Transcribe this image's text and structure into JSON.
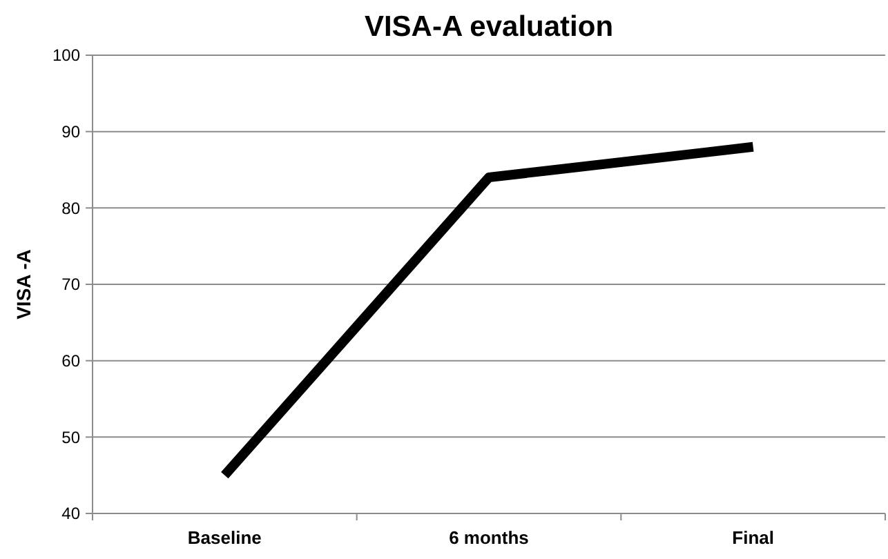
{
  "chart_data": {
    "type": "line",
    "title": "VISA-A evaluation",
    "ylabel": "VISA -A",
    "categories": [
      "Baseline",
      "6 months",
      "Final"
    ],
    "series": [
      {
        "color": "#000000",
        "values": [
          45,
          84,
          88
        ]
      }
    ],
    "ylim": [
      40,
      100
    ],
    "yticks": [
      40,
      50,
      60,
      70,
      80,
      90,
      100
    ],
    "grid": "y",
    "marker": "none",
    "line_style": "solid"
  }
}
